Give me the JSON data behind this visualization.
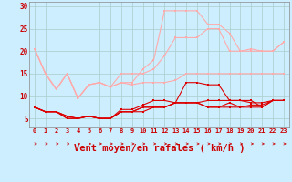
{
  "background_color": "#cceeff",
  "grid_color": "#aacccc",
  "xlabel": "Vent moyen/en rafales ( km/h )",
  "xlabel_color": "#cc0000",
  "xlabel_fontsize": 7.5,
  "xtick_color": "#cc0000",
  "ytick_color": "#cc0000",
  "xmin": -0.5,
  "xmax": 23.5,
  "ymin": 3.0,
  "ymax": 31.0,
  "yticks": [
    5,
    10,
    15,
    20,
    25,
    30
  ],
  "xticks": [
    0,
    1,
    2,
    3,
    4,
    5,
    6,
    7,
    8,
    9,
    10,
    11,
    12,
    13,
    14,
    15,
    16,
    17,
    18,
    19,
    20,
    21,
    22,
    23
  ],
  "series": [
    {
      "x": [
        0,
        1,
        2,
        3,
        4,
        5,
        6,
        7,
        8,
        9,
        10,
        11,
        12,
        13,
        14,
        15,
        16,
        17,
        18,
        19,
        20,
        21,
        22,
        23
      ],
      "y": [
        7.5,
        6.5,
        6.5,
        5,
        5,
        5.5,
        5,
        5,
        6.5,
        6.5,
        6.5,
        7.5,
        7.5,
        8.5,
        13,
        13,
        12.5,
        12.5,
        9,
        9,
        9,
        7.5,
        9,
        9
      ],
      "color": "#dd0000",
      "lw": 0.8,
      "marker": "s",
      "ms": 1.8
    },
    {
      "x": [
        0,
        1,
        2,
        3,
        4,
        5,
        6,
        7,
        8,
        9,
        10,
        11,
        12,
        13,
        14,
        15,
        16,
        17,
        18,
        19,
        20,
        21,
        22,
        23
      ],
      "y": [
        7.5,
        6.5,
        6.5,
        5,
        5,
        5.5,
        5,
        5,
        7,
        7,
        8,
        9,
        9,
        8.5,
        8.5,
        8.5,
        9,
        9,
        9,
        9,
        8.5,
        8.5,
        9,
        9
      ],
      "color": "#dd0000",
      "lw": 0.8,
      "marker": "s",
      "ms": 1.8
    },
    {
      "x": [
        0,
        1,
        2,
        3,
        4,
        5,
        6,
        7,
        8,
        9,
        10,
        11,
        12,
        13,
        14,
        15,
        16,
        17,
        18,
        19,
        20,
        21,
        22,
        23
      ],
      "y": [
        7.5,
        6.5,
        6.5,
        5.5,
        5,
        5.5,
        5,
        5,
        6.5,
        6.5,
        7.5,
        7.5,
        7.5,
        8.5,
        8.5,
        8.5,
        7.5,
        7.5,
        8.5,
        7.5,
        8,
        8,
        9,
        9
      ],
      "color": "#dd0000",
      "lw": 0.8,
      "marker": "s",
      "ms": 1.8
    },
    {
      "x": [
        0,
        1,
        2,
        3,
        4,
        5,
        6,
        7,
        8,
        9,
        10,
        11,
        12,
        13,
        14,
        15,
        16,
        17,
        18,
        19,
        20,
        21,
        22,
        23
      ],
      "y": [
        7.5,
        6.5,
        6.5,
        5.5,
        5,
        5.5,
        5,
        5,
        6.5,
        6.5,
        7.5,
        7.5,
        7.5,
        8.5,
        8.5,
        8.5,
        7.5,
        7.5,
        7.5,
        7.5,
        7.5,
        7.5,
        9,
        9
      ],
      "color": "#dd0000",
      "lw": 0.8,
      "marker": "s",
      "ms": 1.8
    },
    {
      "x": [
        0,
        1,
        2,
        3,
        4,
        5,
        6,
        7,
        8,
        9,
        10,
        11,
        12,
        13,
        14,
        15,
        16,
        17,
        18,
        19,
        20,
        21,
        22,
        23
      ],
      "y": [
        20.5,
        15,
        11.5,
        15,
        9.5,
        12.5,
        13,
        12,
        13,
        12.5,
        13,
        13,
        13,
        13.5,
        15,
        15,
        15,
        15,
        15,
        15,
        15,
        15,
        15,
        15
      ],
      "color": "#ffaaaa",
      "lw": 0.8,
      "marker": "s",
      "ms": 1.8
    },
    {
      "x": [
        0,
        1,
        2,
        3,
        4,
        5,
        6,
        7,
        8,
        9,
        10,
        11,
        12,
        13,
        14,
        15,
        16,
        17,
        18,
        19,
        20,
        21,
        22,
        23
      ],
      "y": [
        20.5,
        15,
        11.5,
        15,
        9.5,
        12.5,
        13,
        12,
        13,
        13,
        16,
        18,
        29,
        29,
        29,
        29,
        26,
        26,
        24,
        20,
        20.5,
        20,
        20,
        22
      ],
      "color": "#ffaaaa",
      "lw": 0.8,
      "marker": "s",
      "ms": 1.8
    },
    {
      "x": [
        0,
        1,
        2,
        3,
        4,
        5,
        6,
        7,
        8,
        9,
        10,
        11,
        12,
        13,
        14,
        15,
        16,
        17,
        18,
        19,
        20,
        21,
        22,
        23
      ],
      "y": [
        20.5,
        15,
        11.5,
        15,
        9.5,
        12.5,
        13,
        12,
        15,
        15,
        15,
        16,
        19,
        23,
        23,
        23,
        25,
        25,
        20,
        20,
        20,
        20,
        20,
        22
      ],
      "color": "#ffaaaa",
      "lw": 0.8,
      "marker": "s",
      "ms": 1.8
    }
  ]
}
